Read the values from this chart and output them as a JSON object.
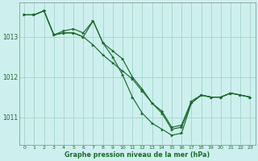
{
  "title": "Graphe pression niveau de la mer (hPa)",
  "bg_color": "#cdf0ee",
  "grid_color": "#a8d8cc",
  "line_color": "#1a6b2a",
  "spine_color": "#888888",
  "xlim": [
    -0.5,
    23.5
  ],
  "ylim": [
    1010.3,
    1013.85
  ],
  "yticks": [
    1011,
    1012,
    1013
  ],
  "xticks": [
    0,
    1,
    2,
    3,
    4,
    5,
    6,
    7,
    8,
    9,
    10,
    11,
    12,
    13,
    14,
    15,
    16,
    17,
    18,
    19,
    20,
    21,
    22,
    23
  ],
  "series": [
    [
      1013.55,
      1013.55,
      1013.65,
      1013.05,
      1013.15,
      1013.2,
      1013.1,
      1013.4,
      1012.85,
      1012.65,
      1012.45,
      1012.0,
      1011.7,
      1011.35,
      1011.15,
      1010.75,
      1010.8,
      1011.4,
      1011.55,
      1011.5,
      1011.5,
      1011.6,
      1011.55,
      1011.5
    ],
    [
      1013.55,
      1013.55,
      1013.65,
      1013.05,
      1013.1,
      1013.1,
      1013.0,
      1012.8,
      1012.55,
      1012.35,
      1012.15,
      1011.95,
      1011.65,
      1011.35,
      1011.1,
      1010.7,
      1010.75,
      1011.35,
      1011.55,
      1011.5,
      1011.5,
      1011.6,
      1011.55,
      1011.5
    ],
    [
      1013.55,
      1013.55,
      1013.65,
      1013.05,
      1013.1,
      1013.1,
      1013.0,
      1013.4,
      1012.85,
      1012.5,
      1012.05,
      1011.5,
      1011.1,
      1010.85,
      1010.7,
      1010.55,
      1010.6,
      1011.35,
      1011.55,
      1011.5,
      1011.5,
      1011.6,
      1011.55,
      1011.5
    ]
  ]
}
